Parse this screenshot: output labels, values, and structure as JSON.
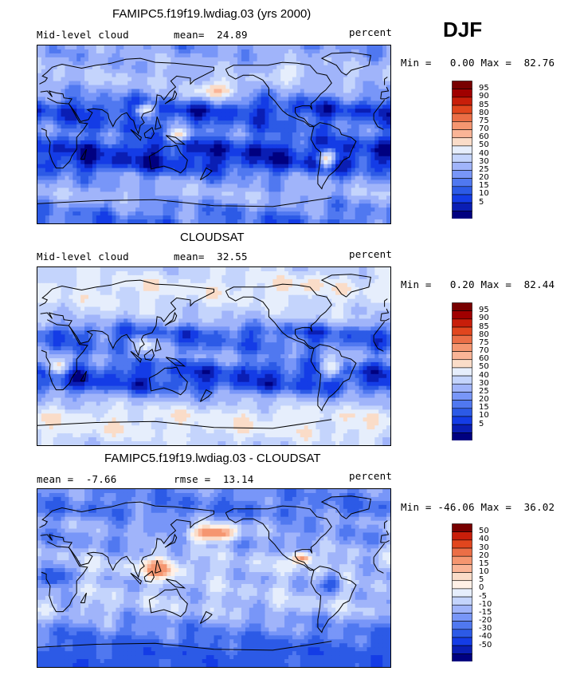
{
  "season": "DJF",
  "colors": {
    "abs_levels": [
      "#000080",
      "#0a1eb4",
      "#143ce6",
      "#2c5ae6",
      "#5078f0",
      "#7896f8",
      "#a0b4fa",
      "#c4d4fc",
      "#e6eefc",
      "#fadcc8",
      "#fab496",
      "#f59670",
      "#eb6e46",
      "#e1461e",
      "#c81e0a",
      "#a00000",
      "#780000"
    ],
    "diff_levels": [
      "#000080",
      "#0a1eb4",
      "#143ce6",
      "#2c5ae6",
      "#5078f0",
      "#7896f8",
      "#a0b4fa",
      "#c4d4fc",
      "#e6eefc",
      "#fff0e6",
      "#fadcc8",
      "#fab496",
      "#f59670",
      "#eb6e46",
      "#e1461e",
      "#c81e0a",
      "#780000"
    ]
  },
  "chart_data": [
    {
      "type": "heatmap",
      "title": "FAMIPC5.f19f19.lwdiag.03 (yrs 2000)",
      "left_label": "Mid-level cloud",
      "mean_label": "mean=",
      "mean": "24.89",
      "units": "percent",
      "min_label": "Min =",
      "min": "0.00",
      "max_label": "Max =",
      "max": "82.76",
      "colorbar_labels": [
        "95",
        "90",
        "85",
        "80",
        "75",
        "70",
        "60",
        "50",
        "40",
        "30",
        "25",
        "20",
        "15",
        "10",
        "5"
      ],
      "levels": [
        5,
        10,
        15,
        20,
        25,
        30,
        40,
        50,
        60,
        70,
        75,
        80,
        85,
        90,
        95
      ],
      "zonal_profile": [
        {
          "lat": 90,
          "value": 30
        },
        {
          "lat": 70,
          "value": 35
        },
        {
          "lat": 55,
          "value": 40
        },
        {
          "lat": 40,
          "value": 28
        },
        {
          "lat": 25,
          "value": 12
        },
        {
          "lat": 10,
          "value": 20
        },
        {
          "lat": 0,
          "value": 22
        },
        {
          "lat": -15,
          "value": 10
        },
        {
          "lat": -30,
          "value": 10
        },
        {
          "lat": -45,
          "value": 28
        },
        {
          "lat": -60,
          "value": 36
        },
        {
          "lat": -75,
          "value": 26
        },
        {
          "lat": -90,
          "value": 20
        }
      ],
      "features": [
        {
          "lon": 180,
          "lat": 45,
          "dlon": 25,
          "dlat": 8,
          "value": 70
        },
        {
          "lon": 145,
          "lat": 0,
          "dlon": 12,
          "dlat": 6,
          "value": 58
        },
        {
          "lon": -65,
          "lat": -25,
          "dlon": 8,
          "dlat": 8,
          "value": 62
        },
        {
          "lon": -100,
          "lat": 65,
          "dlon": 20,
          "dlat": 8,
          "value": 55
        },
        {
          "lon": 110,
          "lat": 25,
          "dlon": 10,
          "dlat": 6,
          "value": 55
        }
      ]
    },
    {
      "type": "heatmap",
      "title": "CLOUDSAT",
      "left_label": "Mid-level cloud",
      "mean_label": "mean=",
      "mean": "32.55",
      "units": "percent",
      "min_label": "Min =",
      "min": "0.20",
      "max_label": "Max =",
      "max": "82.44",
      "colorbar_labels": [
        "95",
        "90",
        "85",
        "80",
        "75",
        "70",
        "60",
        "50",
        "40",
        "30",
        "25",
        "20",
        "15",
        "10",
        "5"
      ],
      "levels": [
        5,
        10,
        15,
        20,
        25,
        30,
        40,
        50,
        60,
        70,
        75,
        80,
        85,
        90,
        95
      ],
      "zonal_profile": [
        {
          "lat": 90,
          "value": 45
        },
        {
          "lat": 70,
          "value": 55
        },
        {
          "lat": 55,
          "value": 50
        },
        {
          "lat": 40,
          "value": 42
        },
        {
          "lat": 25,
          "value": 18
        },
        {
          "lat": 10,
          "value": 22
        },
        {
          "lat": 0,
          "value": 28
        },
        {
          "lat": -15,
          "value": 14
        },
        {
          "lat": -30,
          "value": 14
        },
        {
          "lat": -45,
          "value": 38
        },
        {
          "lat": -60,
          "value": 55
        },
        {
          "lat": -75,
          "value": 55
        },
        {
          "lat": -90,
          "value": 45
        }
      ],
      "features": [
        {
          "lon": 20,
          "lat": -10,
          "dlon": 10,
          "dlat": 8,
          "value": 62
        },
        {
          "lon": -60,
          "lat": -10,
          "dlon": 10,
          "dlat": 10,
          "value": 62
        },
        {
          "lon": -95,
          "lat": 70,
          "dlon": 20,
          "dlat": 8,
          "value": 65
        },
        {
          "lon": 110,
          "lat": 10,
          "dlon": 12,
          "dlat": 8,
          "value": 55
        }
      ]
    },
    {
      "type": "heatmap",
      "title": "FAMIPC5.f19f19.lwdiag.03 - CLOUDSAT",
      "mean_label": "mean =",
      "mean": "-7.66",
      "rmse_label": "rmse =",
      "rmse": "13.14",
      "units": "percent",
      "min_label": "Min =",
      "min": "-46.06",
      "max_label": "Max =",
      "max": "36.02",
      "colorbar_labels": [
        "50",
        "40",
        "30",
        "20",
        "15",
        "10",
        "5",
        "0",
        "-5",
        "-10",
        "-15",
        "-20",
        "-30",
        "-40",
        "-50"
      ],
      "levels": [
        -50,
        -40,
        -30,
        -20,
        -15,
        -10,
        -5,
        0,
        5,
        10,
        15,
        20,
        30,
        40,
        50
      ],
      "zonal_profile": [
        {
          "lat": 90,
          "value": -14
        },
        {
          "lat": 70,
          "value": -18
        },
        {
          "lat": 55,
          "value": -10
        },
        {
          "lat": 40,
          "value": -12
        },
        {
          "lat": 25,
          "value": -7
        },
        {
          "lat": 10,
          "value": -3
        },
        {
          "lat": 0,
          "value": -6
        },
        {
          "lat": -15,
          "value": -5
        },
        {
          "lat": -30,
          "value": -4
        },
        {
          "lat": -45,
          "value": -12
        },
        {
          "lat": -60,
          "value": -18
        },
        {
          "lat": -75,
          "value": -25
        },
        {
          "lat": -90,
          "value": -25
        }
      ],
      "features": [
        {
          "lon": 180,
          "lat": 45,
          "dlon": 25,
          "dlat": 8,
          "value": 28
        },
        {
          "lon": 125,
          "lat": 10,
          "dlon": 20,
          "dlat": 10,
          "value": 22
        },
        {
          "lon": -90,
          "lat": 20,
          "dlon": 10,
          "dlat": 6,
          "value": 30
        },
        {
          "lon": 15,
          "lat": 0,
          "dlon": 15,
          "dlat": 10,
          "value": -30
        },
        {
          "lon": -60,
          "lat": -5,
          "dlon": 10,
          "dlat": 10,
          "value": -25
        }
      ]
    }
  ]
}
